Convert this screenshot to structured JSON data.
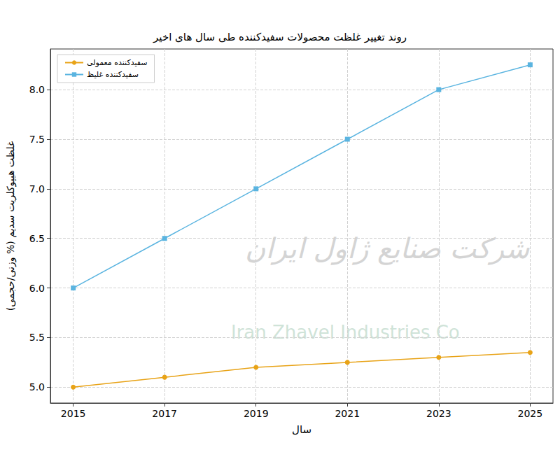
{
  "chart_data": {
    "type": "line",
    "title": "روند تغییر غلظت محصولات سفیدکننده طی سال های اخیر",
    "x_label": "سال",
    "y_label": "غلظت هیپوکلریت سدیم (% وزنی/حجمی)",
    "x": [
      2015,
      2017,
      2019,
      2021,
      2023,
      2025
    ],
    "series": [
      {
        "name": "سفیدکننده معمولی",
        "color": "#e8a317",
        "marker": "circle",
        "line_style": "solid",
        "values": [
          5.0,
          5.1,
          5.2,
          5.25,
          5.3,
          5.35
        ]
      },
      {
        "name": "سفیدکننده غلیظ",
        "color": "#5ab4e0",
        "marker": "square",
        "line_style": "solid",
        "values": [
          6.0,
          6.5,
          7.0,
          7.5,
          8.0,
          8.25
        ]
      }
    ],
    "xlim": [
      2014.5,
      2025.5
    ],
    "xticks": [
      2015,
      2017,
      2019,
      2021,
      2023,
      2025
    ],
    "ylim": [
      4.84,
      8.41
    ],
    "yticks": [
      {
        "value": 5.0,
        "label": "5.0"
      },
      {
        "value": 5.5,
        "label": "5.5"
      },
      {
        "value": 6.0,
        "label": "6.0"
      },
      {
        "value": 6.5,
        "label": "6.5"
      },
      {
        "value": 7.0,
        "label": "7.0"
      },
      {
        "value": 7.5,
        "label": "7.5"
      },
      {
        "value": 8.0,
        "label": "8.0"
      }
    ],
    "annotations": [
      "شرکت صنایع ژاول ایران",
      "Iran Zhavel Industries Co"
    ],
    "grid": true,
    "legend": "upper left"
  }
}
